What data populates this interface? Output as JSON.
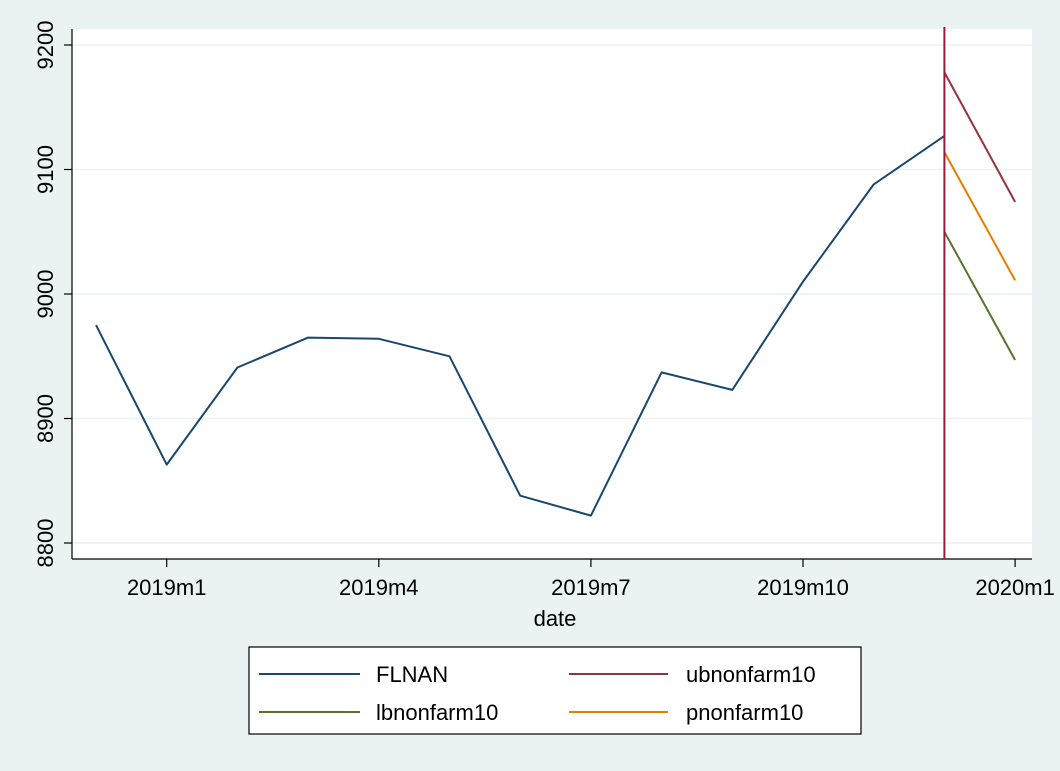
{
  "chart_data": {
    "type": "line",
    "xlabel": "date",
    "ylabel": "",
    "x_ticks": [
      "2019m1",
      "2019m4",
      "2019m7",
      "2019m10",
      "2020m1"
    ],
    "y_ticks": [
      "8800",
      "8900",
      "9000",
      "9100",
      "9200"
    ],
    "ylim": [
      8800,
      9200
    ],
    "xlim": [
      "2018m12",
      "2020m1"
    ],
    "grid": true,
    "legend_position": "bottom",
    "reference_line": {
      "x": "2019m12",
      "color": "#a0163a"
    },
    "series": [
      {
        "name": "FLNAN",
        "color": "#1a476f",
        "points": [
          {
            "x": "2018m12",
            "y": 8975
          },
          {
            "x": "2019m1",
            "y": 8863
          },
          {
            "x": "2019m2",
            "y": 8941
          },
          {
            "x": "2019m3",
            "y": 8965
          },
          {
            "x": "2019m4",
            "y": 8964
          },
          {
            "x": "2019m5",
            "y": 8950
          },
          {
            "x": "2019m6",
            "y": 8838
          },
          {
            "x": "2019m7",
            "y": 8822
          },
          {
            "x": "2019m8",
            "y": 8937
          },
          {
            "x": "2019m9",
            "y": 8923
          },
          {
            "x": "2019m10",
            "y": 9010
          },
          {
            "x": "2019m11",
            "y": 9088
          },
          {
            "x": "2019m12",
            "y": 9127
          }
        ]
      },
      {
        "name": "ubnonfarm10",
        "color": "#90353b",
        "points": [
          {
            "x": "2019m12",
            "y": 9178
          },
          {
            "x": "2020m1",
            "y": 9074
          }
        ]
      },
      {
        "name": "lbnonfarm10",
        "color": "#55752f",
        "points": [
          {
            "x": "2019m12",
            "y": 9050
          },
          {
            "x": "2020m1",
            "y": 8947
          }
        ]
      },
      {
        "name": "pnonfarm10",
        "color": "#e37e00",
        "points": [
          {
            "x": "2019m12",
            "y": 9114
          },
          {
            "x": "2020m1",
            "y": 9011
          }
        ]
      }
    ],
    "legend": [
      {
        "name": "FLNAN",
        "color": "#1a476f"
      },
      {
        "name": "ubnonfarm10",
        "color": "#90353b"
      },
      {
        "name": "lbnonfarm10",
        "color": "#55752f"
      },
      {
        "name": "pnonfarm10",
        "color": "#e37e00"
      }
    ]
  }
}
